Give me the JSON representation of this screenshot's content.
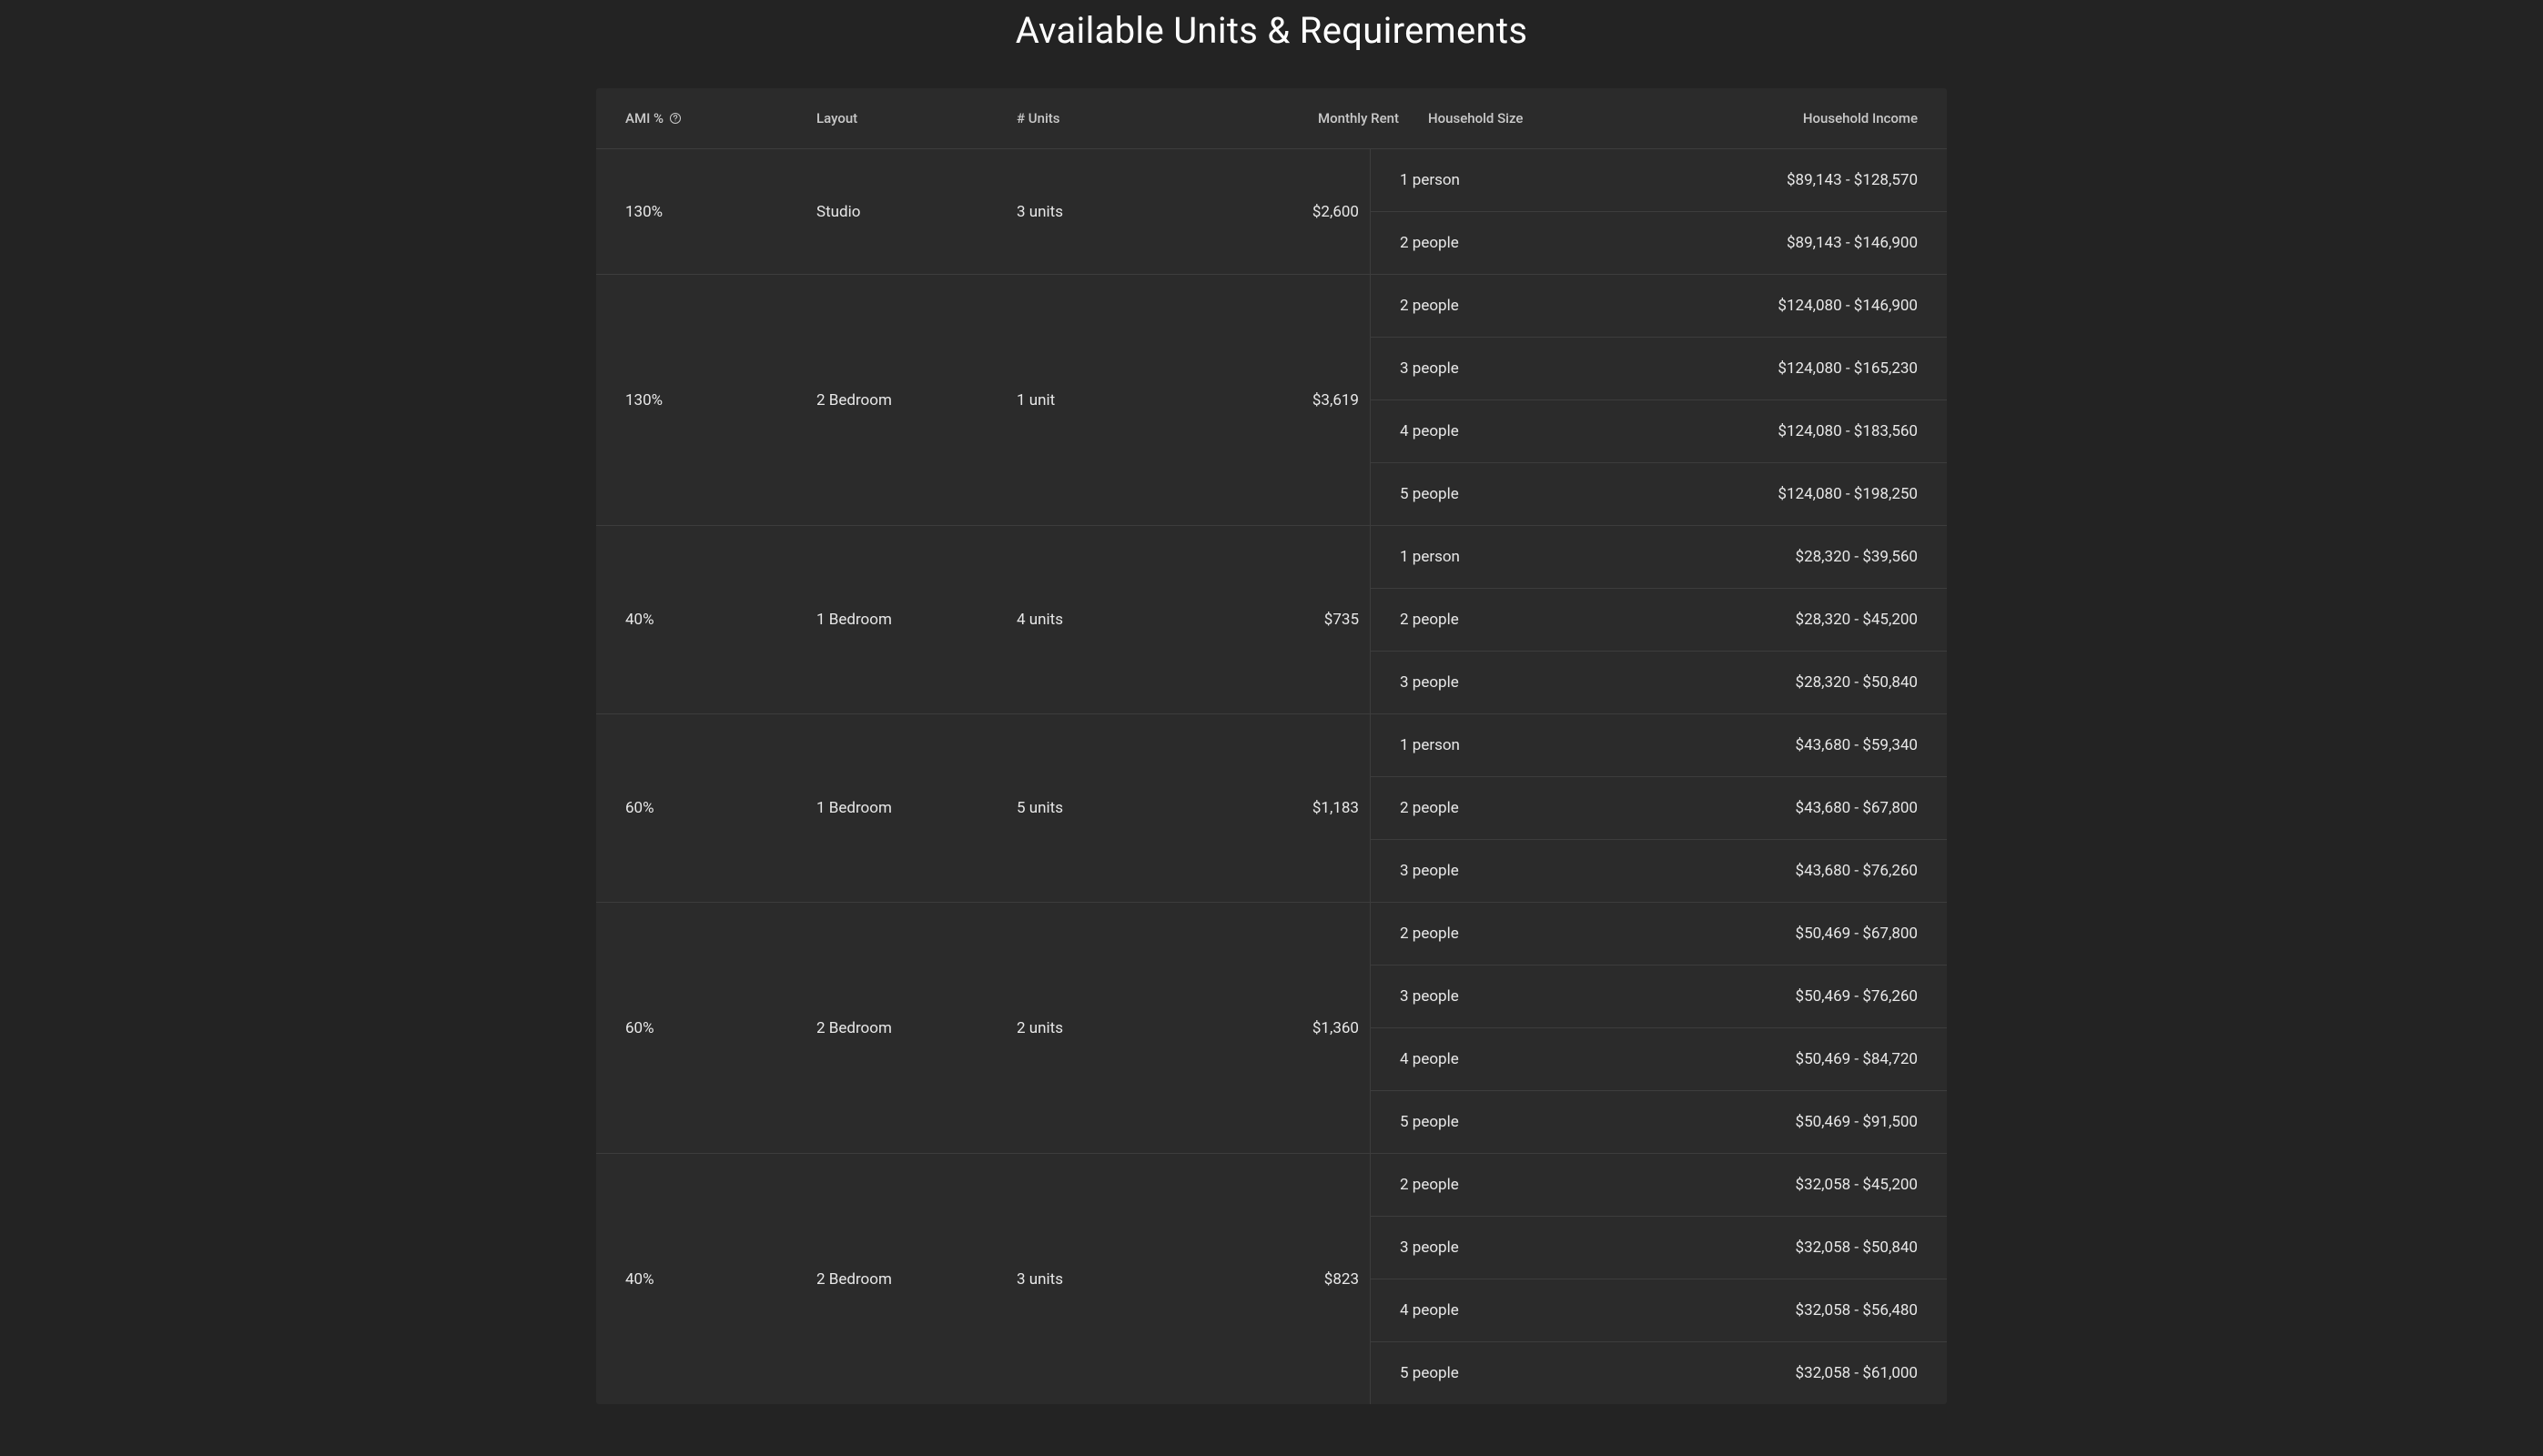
{
  "title": "Available Units & Requirements",
  "colors": {
    "page_bg": "#232323",
    "table_bg": "#2b2b2b",
    "border": "#3d3d3d",
    "title_text": "#ffffff",
    "header_text": "#c9c9c9",
    "body_text": "#e8e8e8"
  },
  "columns": {
    "ami": "AMI %",
    "layout": "Layout",
    "units": "# Units",
    "rent": "Monthly Rent",
    "hh_size": "Household Size",
    "hh_income": "Household Income"
  },
  "rows": [
    {
      "ami": "130%",
      "layout": "Studio",
      "units": "3 units",
      "rent": "$2,600",
      "households": [
        {
          "size": "1 person",
          "income": "$89,143 - $128,570"
        },
        {
          "size": "2 people",
          "income": "$89,143 - $146,900"
        }
      ]
    },
    {
      "ami": "130%",
      "layout": "2 Bedroom",
      "units": "1 unit",
      "rent": "$3,619",
      "households": [
        {
          "size": "2 people",
          "income": "$124,080 - $146,900"
        },
        {
          "size": "3 people",
          "income": "$124,080 - $165,230"
        },
        {
          "size": "4 people",
          "income": "$124,080 - $183,560"
        },
        {
          "size": "5 people",
          "income": "$124,080 - $198,250"
        }
      ]
    },
    {
      "ami": "40%",
      "layout": "1 Bedroom",
      "units": "4 units",
      "rent": "$735",
      "households": [
        {
          "size": "1 person",
          "income": "$28,320 - $39,560"
        },
        {
          "size": "2 people",
          "income": "$28,320 - $45,200"
        },
        {
          "size": "3 people",
          "income": "$28,320 - $50,840"
        }
      ]
    },
    {
      "ami": "60%",
      "layout": "1 Bedroom",
      "units": "5 units",
      "rent": "$1,183",
      "households": [
        {
          "size": "1 person",
          "income": "$43,680 - $59,340"
        },
        {
          "size": "2 people",
          "income": "$43,680 - $67,800"
        },
        {
          "size": "3 people",
          "income": "$43,680 - $76,260"
        }
      ]
    },
    {
      "ami": "60%",
      "layout": "2 Bedroom",
      "units": "2 units",
      "rent": "$1,360",
      "households": [
        {
          "size": "2 people",
          "income": "$50,469 - $67,800"
        },
        {
          "size": "3 people",
          "income": "$50,469 - $76,260"
        },
        {
          "size": "4 people",
          "income": "$50,469 - $84,720"
        },
        {
          "size": "5 people",
          "income": "$50,469 - $91,500"
        }
      ]
    },
    {
      "ami": "40%",
      "layout": "2 Bedroom",
      "units": "3 units",
      "rent": "$823",
      "households": [
        {
          "size": "2 people",
          "income": "$32,058 - $45,200"
        },
        {
          "size": "3 people",
          "income": "$32,058 - $50,840"
        },
        {
          "size": "4 people",
          "income": "$32,058 - $56,480"
        },
        {
          "size": "5 people",
          "income": "$32,058 - $61,000"
        }
      ]
    }
  ]
}
